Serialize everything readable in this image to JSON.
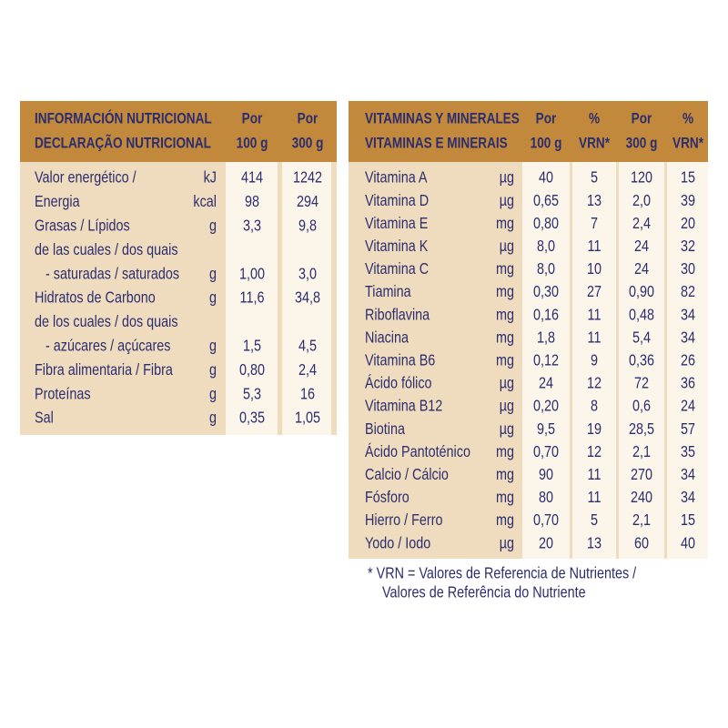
{
  "left": {
    "header": {
      "title": [
        "INFORMACIÓN NUTRICIONAL",
        "DECLARAÇÃO NUTRICIONAL"
      ],
      "columns": [
        [
          "Por",
          "100 g"
        ],
        [
          "Por",
          "300 g"
        ]
      ]
    },
    "rows": [
      {
        "label": "Valor energético /",
        "unit": "kJ",
        "values": [
          "414",
          "1242"
        ]
      },
      {
        "label": "Energia",
        "unit": "kcal",
        "values": [
          "98",
          "294"
        ]
      },
      {
        "label": "Grasas / Lípidos",
        "unit": "g",
        "values": [
          "3,3",
          "9,8"
        ]
      },
      {
        "label": "de las cuales / dos quais"
      },
      {
        "label": "- saturadas / saturados",
        "unit": "g",
        "values": [
          "1,00",
          "3,0"
        ]
      },
      {
        "label": "Hidratos de Carbono",
        "unit": "g",
        "values": [
          "11,6",
          "34,8"
        ]
      },
      {
        "label": "de los cuales / dos quais"
      },
      {
        "label": "- azúcares / açúcares",
        "unit": "g",
        "values": [
          "1,5",
          "4,5"
        ]
      },
      {
        "label": "Fibra alimentaria / Fibra",
        "unit": "g",
        "values": [
          "0,80",
          "2,4"
        ]
      },
      {
        "label": "Proteínas",
        "unit": "g",
        "values": [
          "5,3",
          "16"
        ]
      },
      {
        "label": "Sal",
        "unit": "g",
        "values": [
          "0,35",
          "1,05"
        ]
      }
    ]
  },
  "right": {
    "header": {
      "title": [
        "VITAMINAS Y MINERALES",
        "VITAMINAS E MINERAIS"
      ],
      "columns": [
        [
          "Por",
          "100 g"
        ],
        [
          "%",
          "VRN*"
        ],
        [
          "Por",
          "300 g"
        ],
        [
          "%",
          "VRN*"
        ]
      ]
    },
    "rows": [
      {
        "label": "Vitamina A",
        "unit": "µg",
        "values": [
          "40",
          "5",
          "120",
          "15"
        ]
      },
      {
        "label": "Vitamina D",
        "unit": "µg",
        "values": [
          "0,65",
          "13",
          "2,0",
          "39"
        ]
      },
      {
        "label": "Vitamina E",
        "unit": "mg",
        "values": [
          "0,80",
          "7",
          "2,4",
          "20"
        ]
      },
      {
        "label": "Vitamina K",
        "unit": "µg",
        "values": [
          "8,0",
          "11",
          "24",
          "32"
        ]
      },
      {
        "label": "Vitamina C",
        "unit": "mg",
        "values": [
          "8,0",
          "10",
          "24",
          "30"
        ]
      },
      {
        "label": "Tiamina",
        "unit": "mg",
        "values": [
          "0,30",
          "27",
          "0,90",
          "82"
        ]
      },
      {
        "label": "Riboflavina",
        "unit": "mg",
        "values": [
          "0,16",
          "11",
          "0,48",
          "34"
        ]
      },
      {
        "label": "Niacina",
        "unit": "mg",
        "values": [
          "1,8",
          "11",
          "5,4",
          "34"
        ]
      },
      {
        "label": "Vitamina B6",
        "unit": "mg",
        "values": [
          "0,12",
          "9",
          "0,36",
          "26"
        ]
      },
      {
        "label": "Ácido fólico",
        "unit": "µg",
        "values": [
          "24",
          "12",
          "72",
          "36"
        ]
      },
      {
        "label": "Vitamina B12",
        "unit": "µg",
        "values": [
          "0,20",
          "8",
          "0,6",
          "24"
        ]
      },
      {
        "label": "Biotina",
        "unit": "µg",
        "values": [
          "9,5",
          "19",
          "28,5",
          "57"
        ]
      },
      {
        "label": "Ácido Pantoténico",
        "unit": "mg",
        "values": [
          "0,70",
          "12",
          "2,1",
          "35"
        ]
      },
      {
        "label": "Calcio / Cálcio",
        "unit": "mg",
        "values": [
          "90",
          "11",
          "270",
          "34"
        ]
      },
      {
        "label": "Fósforo",
        "unit": "mg",
        "values": [
          "80",
          "11",
          "240",
          "34"
        ]
      },
      {
        "label": "Hierro / Ferro",
        "unit": "mg",
        "values": [
          "0,70",
          "5",
          "2,1",
          "15"
        ]
      },
      {
        "label": "Yodo / Iodo",
        "unit": "µg",
        "values": [
          "20",
          "13",
          "60",
          "40"
        ]
      }
    ],
    "footnote": [
      "* VRN = Valores de Referencia de Nutrientes /",
      "Valores de Referência do Nutriente"
    ]
  }
}
